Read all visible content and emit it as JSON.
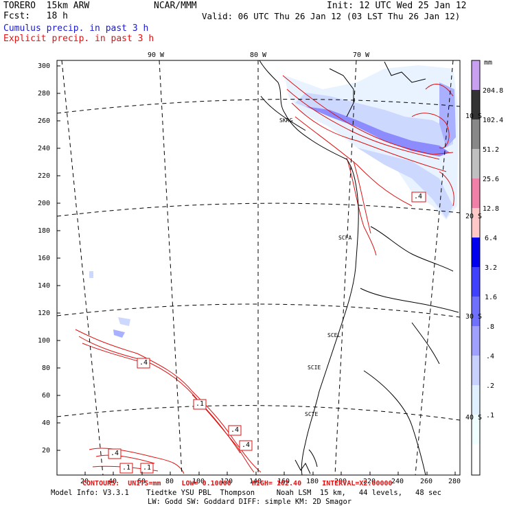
{
  "header": {
    "model": "TORERO  15km ARW",
    "forecast": "Fcst:   18 h",
    "center": "NCAR/MMM",
    "init": "Init: 12 UTC Wed 25 Jan 12",
    "valid": "Valid: 06 UTC Thu 26 Jan 12 (03 LST Thu 26 Jan 12)",
    "field1": "Cumulus precip. in past 3 h",
    "field2": "Explicit precip. in past 3 h"
  },
  "map": {
    "lon_labels": [
      "90 W",
      "80 W",
      "70 W"
    ],
    "lat_labels": [
      "10 S",
      "20 S",
      "30 S",
      "40 S"
    ],
    "y_ticks": [
      "300",
      "280",
      "260",
      "240",
      "220",
      "200",
      "180",
      "160",
      "140",
      "120",
      "100",
      "80",
      "60",
      "40",
      "20"
    ],
    "x_ticks": [
      "20",
      "40",
      "60",
      "80",
      "100",
      "120",
      "140",
      "160",
      "180",
      "200",
      "220",
      "240",
      "260",
      "280"
    ],
    "stations": [
      "SKRG",
      "SCFA",
      "SCEL",
      "SCIE",
      "SCTE"
    ],
    "contour_labels": [
      ".4",
      ".4",
      ".1",
      ".4",
      ".4",
      ".4",
      ".1",
      ".1"
    ]
  },
  "colorbar": {
    "unit": "mm",
    "labels": [
      "204.8",
      "102.4",
      "51.2",
      "25.6",
      "12.8",
      "6.4",
      "3.2",
      "1.6",
      ".8",
      ".4",
      ".2",
      ".1"
    ],
    "colors": [
      "#c8a0f0",
      "#333333",
      "#888888",
      "#c0c0c0",
      "#f080a8",
      "#ffc8c8",
      "#0000ee",
      "#4040ff",
      "#7070ff",
      "#a0a0ff",
      "#c8d0ff",
      "#e0f0ff",
      "#f0ffff",
      "#ffffff"
    ]
  },
  "footer": {
    "contours": "CONTOURS:  UNITS=mm     LOW= 0.10000     HIGH= 102.40     INTERVAL=X2.00000",
    "info1": "Model Info: V3.3.1    Tiedtke YSU PBL  Thompson     Noah LSM  15 km,   44 levels,   48 sec",
    "info2": "LW: Godd SW: Goddard DIFF: simple KM: 2D Smagor"
  }
}
